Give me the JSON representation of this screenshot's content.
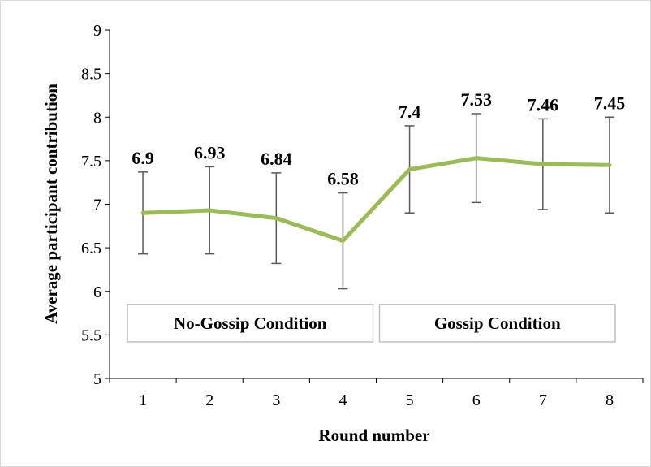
{
  "chart_data": {
    "type": "line",
    "x": [
      1,
      2,
      3,
      4,
      5,
      6,
      7,
      8
    ],
    "categories": [
      "1",
      "2",
      "3",
      "4",
      "5",
      "6",
      "7",
      "8"
    ],
    "series": [
      {
        "values": [
          6.9,
          6.93,
          6.84,
          6.58,
          7.4,
          7.53,
          7.46,
          7.45
        ],
        "error_low": [
          6.43,
          6.43,
          6.32,
          6.03,
          6.9,
          7.02,
          6.94,
          6.9
        ],
        "error_high": [
          7.37,
          7.43,
          7.36,
          7.13,
          7.9,
          8.04,
          7.98,
          8.0
        ],
        "data_labels": [
          "6.9",
          "6.93",
          "6.84",
          "6.58",
          "7.4",
          "7.53",
          "7.46",
          "7.45"
        ],
        "color": "#9bbb59"
      }
    ],
    "title": "",
    "xlabel": "Round number",
    "ylabel": "Average participant contribution",
    "ylim": [
      5,
      9
    ],
    "yticks": [
      "5",
      "5.5",
      "6",
      "6.5",
      "7",
      "7.5",
      "8",
      "8.5",
      "9"
    ],
    "grid": false,
    "annotations": [
      {
        "text": "No-Gossip Condition",
        "rounds": [
          1,
          4
        ]
      },
      {
        "text": "Gossip Condition",
        "rounds": [
          5,
          8
        ]
      }
    ]
  },
  "colors": {
    "line": "#9bbb59",
    "error_bar": "#595959",
    "axis": "#000000",
    "box_border": "#bfbfbf"
  }
}
